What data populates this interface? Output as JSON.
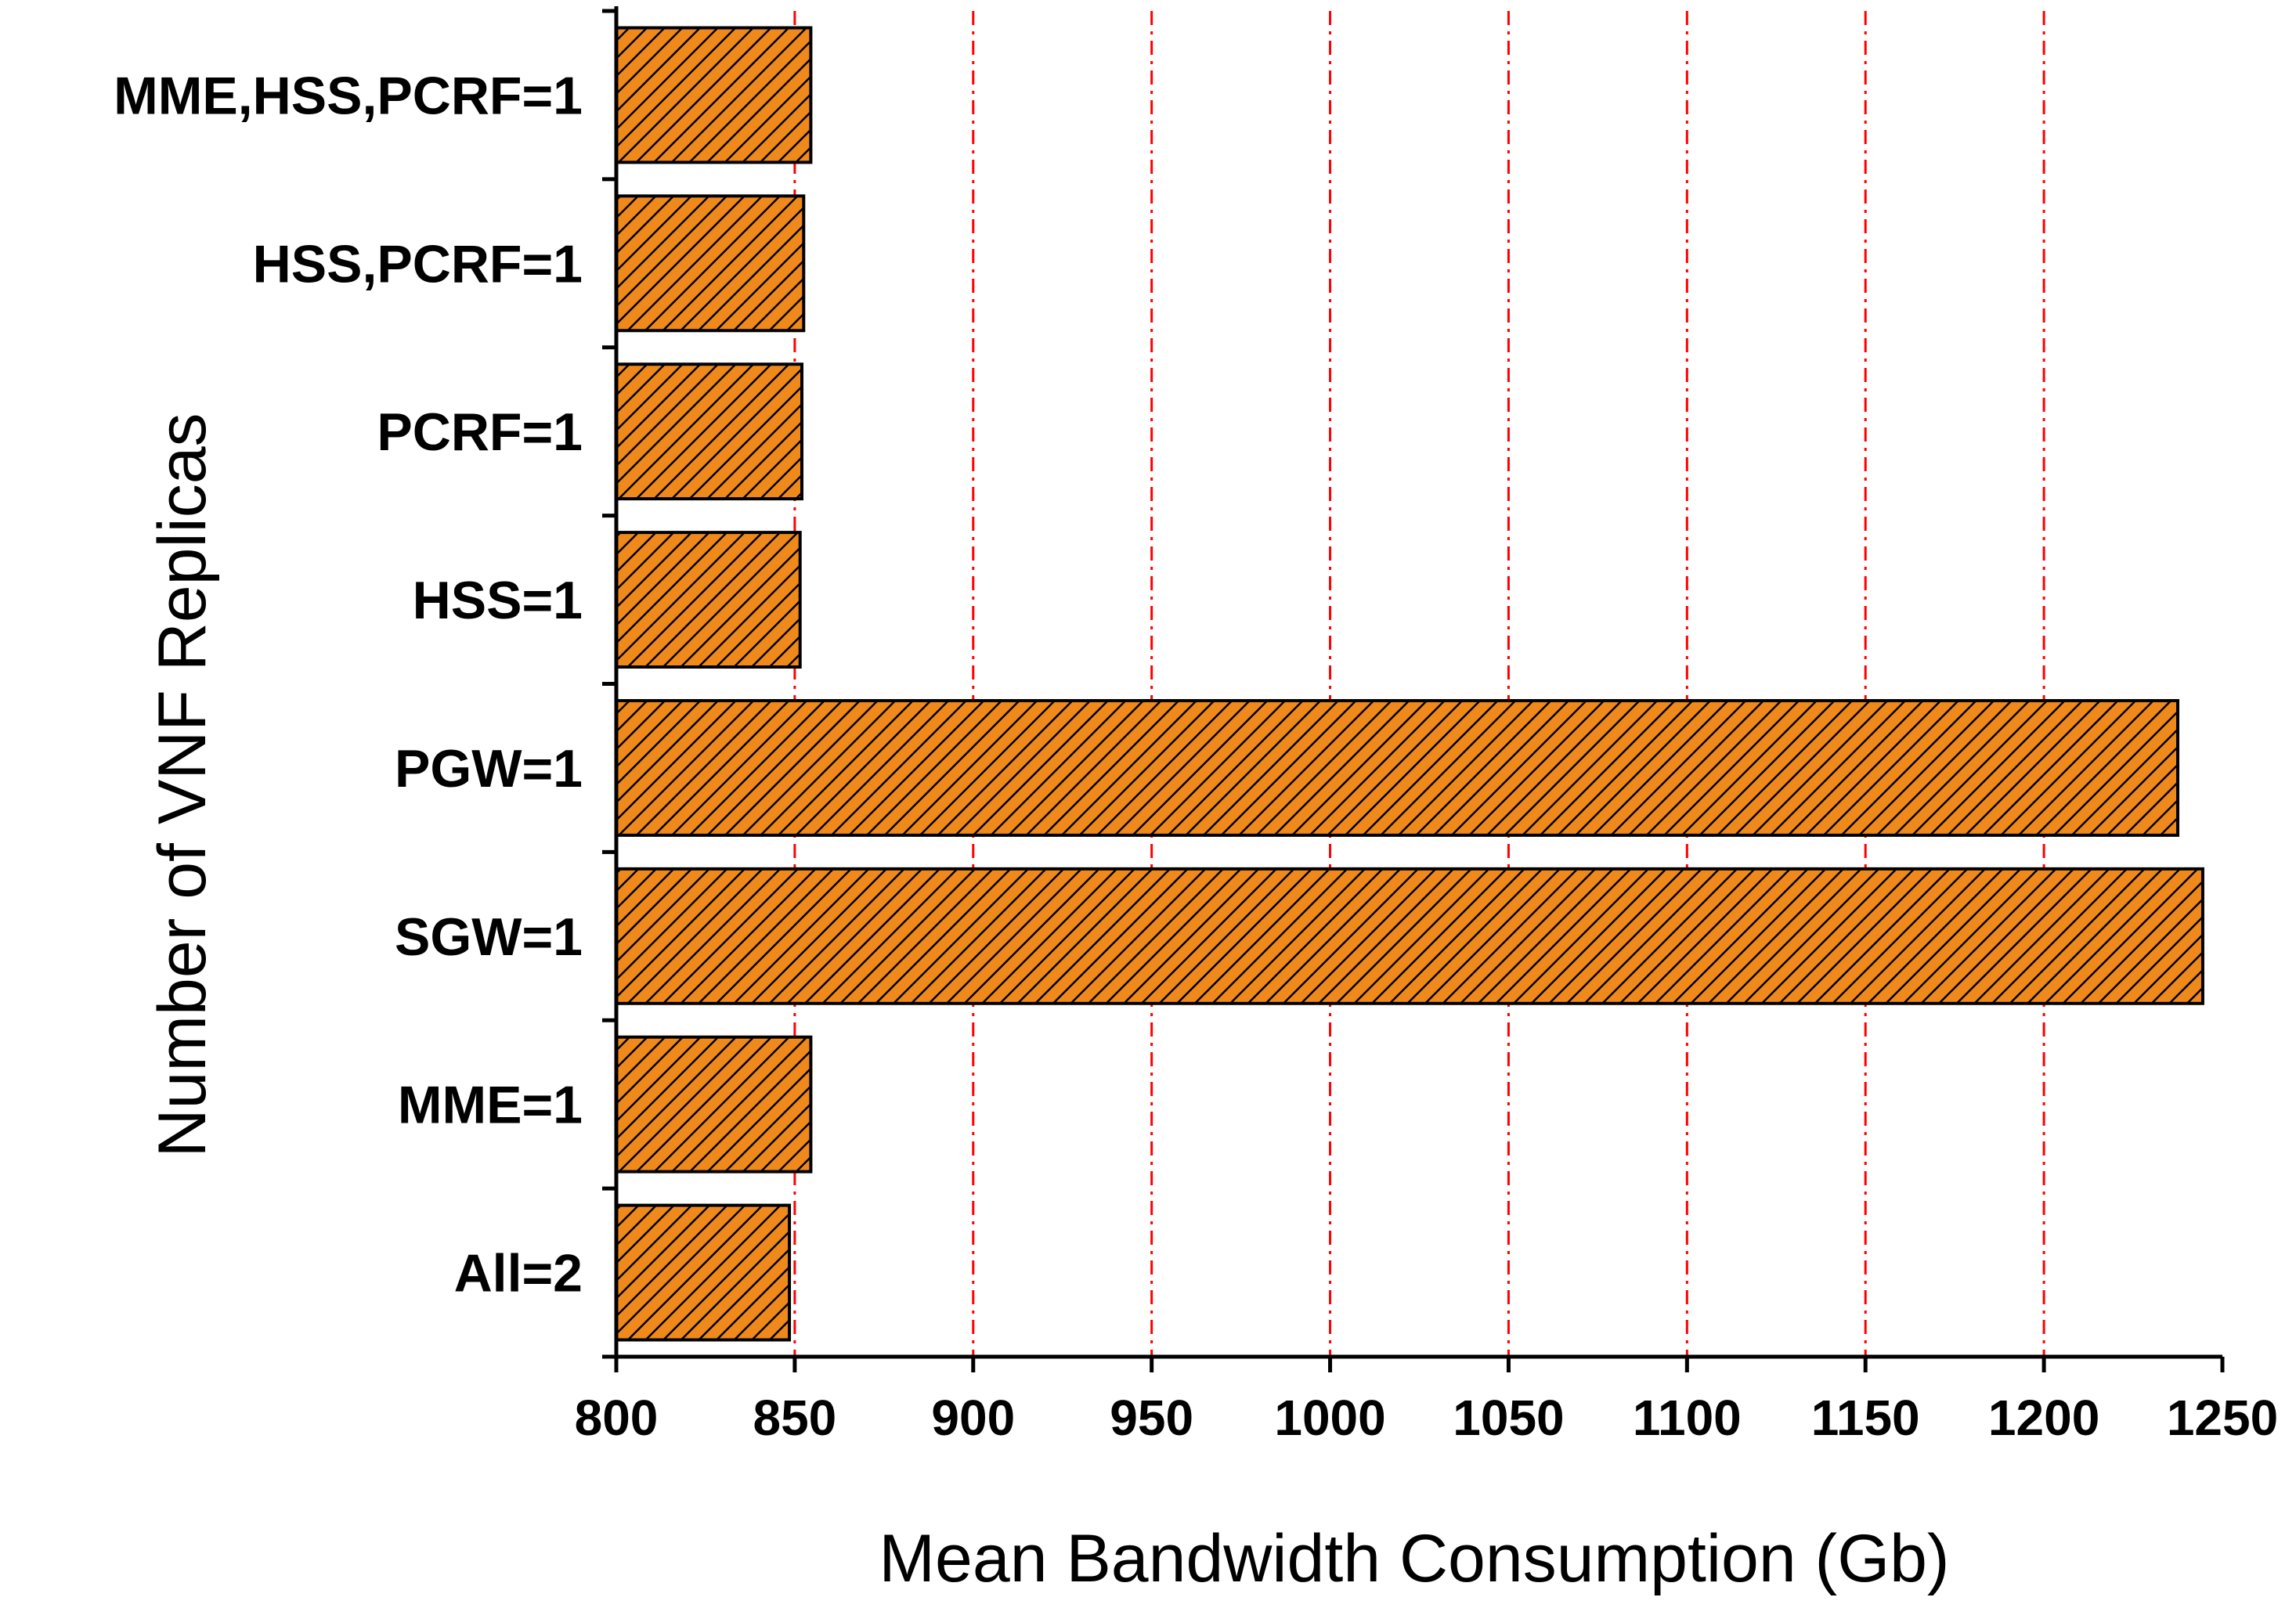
{
  "chart_data": {
    "type": "bar",
    "orientation": "horizontal",
    "title": "",
    "xlabel": "Mean Bandwidth Consumption (Gb)",
    "ylabel": "Number of VNF Replicas",
    "xlim": [
      800,
      1250
    ],
    "xticks": [
      800,
      850,
      900,
      950,
      1000,
      1050,
      1100,
      1150,
      1200,
      1250
    ],
    "xtick_labels": [
      "800",
      "850",
      "900",
      "950",
      "1000",
      "1050",
      "1100",
      "1150",
      "1200",
      "1250"
    ],
    "categories": [
      "MME,HSS,PCRF=1",
      "HSS,PCRF=1",
      "PCRF=1",
      "HSS=1",
      "PGW=1",
      "SGW=1",
      "MME=1",
      "All=2"
    ],
    "values": [
      854.5,
      852.5,
      852,
      851.5,
      1237.5,
      1244.5,
      854.5,
      848.5
    ],
    "grid": "vertical dash-dot lines",
    "legend": "none",
    "colors": {
      "bar_fill": "#f0891b",
      "hatch": "#000000",
      "bar_edge": "#000000",
      "grid": "#ff0000",
      "axis": "#000000"
    }
  }
}
